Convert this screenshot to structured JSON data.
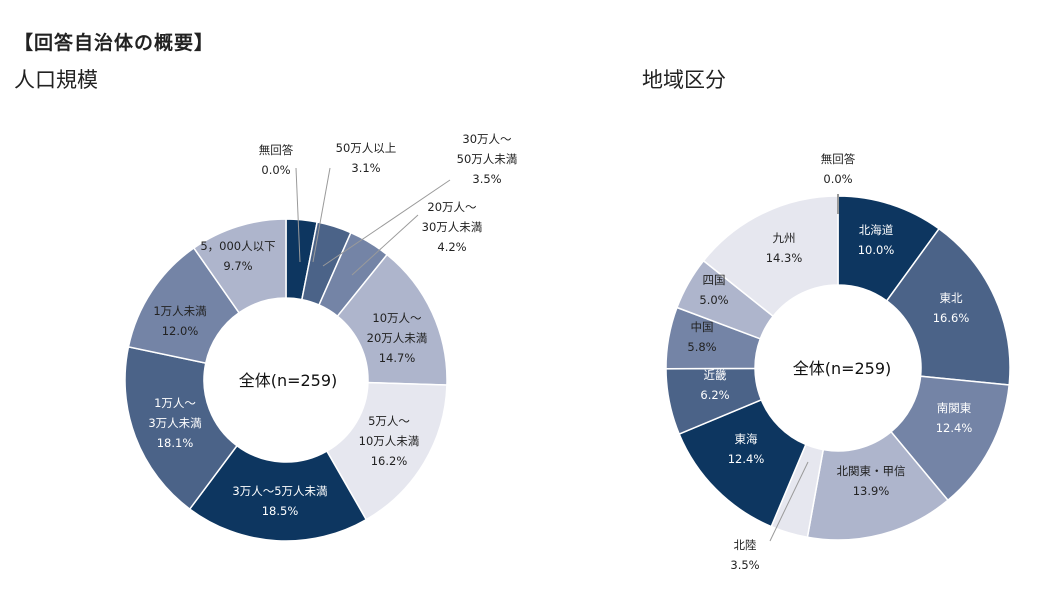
{
  "page_title": "【回答自治体の概要】",
  "colors": {
    "navy": "#0d3660",
    "steel": "#4b6388",
    "mid": "#7484a6",
    "light": "#aeb5cc",
    "pale": "#e6e7ef",
    "leader": "#9a9a9a"
  },
  "chart_data": [
    {
      "type": "pie",
      "title": "人口規模",
      "center_label": "全体(n=259)",
      "slices": [
        {
          "name": "無回答",
          "value": 0.0,
          "pct": "0.0%",
          "color": "navy",
          "label_lines": [
            "無回答"
          ]
        },
        {
          "name": "50万人以上",
          "value": 3.1,
          "pct": "3.1%",
          "color": "navy",
          "label_lines": [
            "50万人以上"
          ]
        },
        {
          "name": "30万人～50万人未満",
          "value": 3.5,
          "pct": "3.5%",
          "color": "steel",
          "label_lines": [
            "30万人～",
            "50万人未満"
          ]
        },
        {
          "name": "20万人～30万人未満",
          "value": 4.2,
          "pct": "4.2%",
          "color": "mid",
          "label_lines": [
            "20万人～",
            "30万人未満"
          ]
        },
        {
          "name": "10万人～20万人未満",
          "value": 14.7,
          "pct": "14.7%",
          "color": "light",
          "label_lines": [
            "10万人～",
            "20万人未満"
          ]
        },
        {
          "name": "5万人～10万人未満",
          "value": 16.2,
          "pct": "16.2%",
          "color": "pale",
          "label_lines": [
            "5万人～",
            "10万人未満"
          ]
        },
        {
          "name": "3万人～5万人未満",
          "value": 18.5,
          "pct": "18.5%",
          "color": "navy",
          "label_lines": [
            "3万人～5万人未満"
          ]
        },
        {
          "name": "1万人～3万人未満",
          "value": 18.1,
          "pct": "18.1%",
          "color": "steel",
          "label_lines": [
            "1万人～",
            "3万人未満"
          ]
        },
        {
          "name": "1万人未満",
          "value": 12.0,
          "pct": "12.0%",
          "color": "mid",
          "label_lines": [
            "1万人未満"
          ]
        },
        {
          "name": "5，000人以下",
          "value": 9.7,
          "pct": "9.7%",
          "color": "light",
          "label_lines": [
            "5，000人以下"
          ]
        }
      ]
    },
    {
      "type": "pie",
      "title": "地域区分",
      "center_label": "全体(n=259)",
      "slices": [
        {
          "name": "北海道",
          "value": 10.0,
          "pct": "10.0%",
          "color": "navy",
          "label_lines": [
            "北海道"
          ]
        },
        {
          "name": "東北",
          "value": 16.6,
          "pct": "16.6%",
          "color": "steel",
          "label_lines": [
            "東北"
          ]
        },
        {
          "name": "南関東",
          "value": 12.4,
          "pct": "12.4%",
          "color": "mid",
          "label_lines": [
            "南関東"
          ]
        },
        {
          "name": "北関東・甲信",
          "value": 13.9,
          "pct": "13.9%",
          "color": "light",
          "label_lines": [
            "北関東・甲信"
          ]
        },
        {
          "name": "北陸",
          "value": 3.5,
          "pct": "3.5%",
          "color": "pale",
          "label_lines": [
            "北陸"
          ]
        },
        {
          "name": "東海",
          "value": 12.4,
          "pct": "12.4%",
          "color": "navy",
          "label_lines": [
            "東海"
          ]
        },
        {
          "name": "近畿",
          "value": 6.2,
          "pct": "6.2%",
          "color": "steel",
          "label_lines": [
            "近畿"
          ]
        },
        {
          "name": "中国",
          "value": 5.8,
          "pct": "5.8%",
          "color": "mid",
          "label_lines": [
            "中国"
          ]
        },
        {
          "name": "四国",
          "value": 5.0,
          "pct": "5.0%",
          "color": "light",
          "label_lines": [
            "四国"
          ]
        },
        {
          "name": "九州",
          "value": 14.3,
          "pct": "14.3%",
          "color": "pale",
          "label_lines": [
            "九州"
          ]
        },
        {
          "name": "無回答",
          "value": 0.0,
          "pct": "0.0%",
          "color": "leader",
          "label_lines": [
            "無回答"
          ]
        }
      ]
    }
  ]
}
